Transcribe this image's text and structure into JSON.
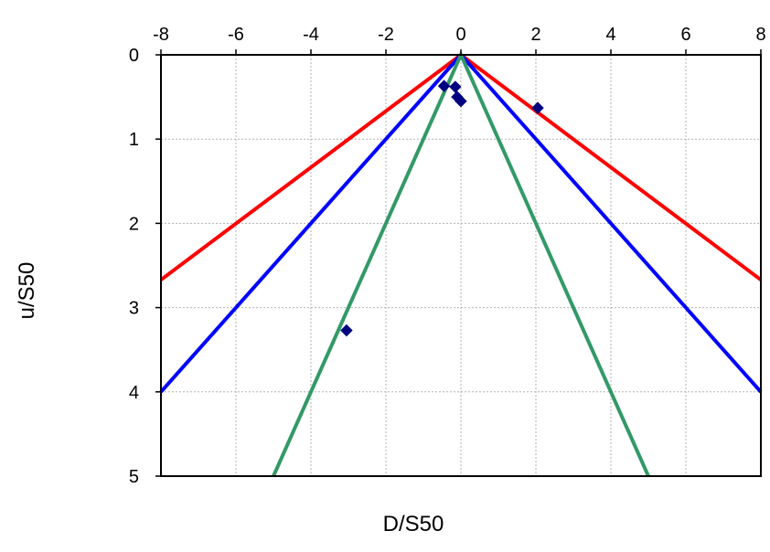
{
  "chart_data": {
    "type": "scatter",
    "title": "",
    "xlabel": "D/S50",
    "ylabel": "u/S50",
    "xlim": [
      -8,
      8
    ],
    "ylim": [
      0,
      5
    ],
    "y_axis_inverted": true,
    "x_axis_position": "top",
    "grid": true,
    "x_ticks": [
      -8,
      -6,
      -4,
      -2,
      0,
      2,
      4,
      6,
      8
    ],
    "y_ticks": [
      0,
      1,
      2,
      3,
      4,
      5
    ],
    "points": {
      "color": "#000080",
      "marker": "diamond",
      "x": [
        -0.45,
        -0.15,
        -0.1,
        0.0,
        2.05,
        -3.05
      ],
      "y": [
        0.37,
        0.38,
        0.5,
        0.55,
        0.63,
        3.27
      ]
    },
    "lines": [
      {
        "color": "#ff0000",
        "x": [
          -8,
          0,
          8
        ],
        "y": [
          2.67,
          0,
          2.67
        ]
      },
      {
        "color": "#0000ff",
        "x": [
          -8,
          0,
          8
        ],
        "y": [
          4.0,
          0,
          4.0
        ]
      },
      {
        "color": "#339966",
        "x": [
          -5,
          0,
          5
        ],
        "y": [
          5.0,
          0,
          5.0
        ]
      }
    ]
  }
}
